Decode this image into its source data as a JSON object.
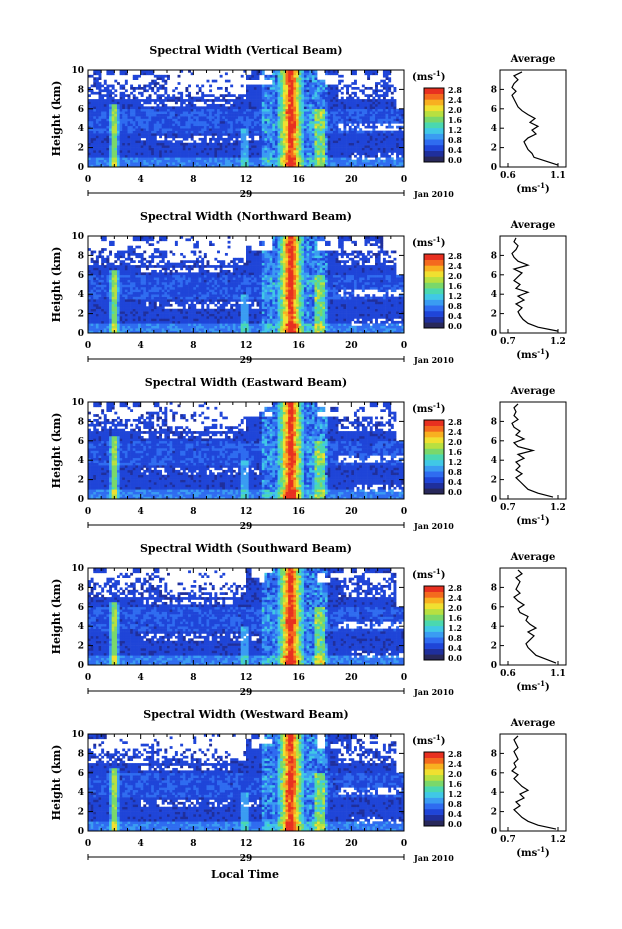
{
  "figure": {
    "xlabel": "Local Time",
    "date_label": "Jan 2010",
    "day_label": "29",
    "colorbar_unit": "(ms",
    "colorbar_unit_exp": "-1",
    "colorbar_unit_close": ")",
    "colorbar_ticks": [
      "0.0",
      "0.4",
      "0.8",
      "1.2",
      "1.6",
      "2.0",
      "2.4",
      "2.8"
    ],
    "average_title": "Average",
    "average_xunit": "(ms",
    "average_xunit_exp": "-1",
    "average_xunit_close": ")"
  },
  "chart_data": [
    {
      "type": "heatmap",
      "title": "Spectral Width (Vertical Beam)",
      "ylabel": "Height (km)",
      "x_ticks": [
        "0",
        "4",
        "8",
        "12",
        "16",
        "20",
        "0"
      ],
      "y_ticks": [
        "0",
        "2",
        "4",
        "6",
        "8",
        "10"
      ],
      "xlim": [
        0,
        24
      ],
      "ylim": [
        0,
        10
      ],
      "colorbar_range": [
        0.0,
        2.8
      ],
      "colorbar_ticks": [
        0.0,
        0.4,
        0.8,
        1.2,
        1.6,
        2.0,
        2.4,
        2.8
      ],
      "average_profile": {
        "xlim": [
          0.6,
          1.1
        ],
        "x_ticks": [
          "0.6",
          "1.1"
        ],
        "y_ticks": [
          "0",
          "2",
          "4",
          "6",
          "8"
        ],
        "height_km": [
          0.2,
          0.6,
          1.0,
          1.4,
          1.8,
          2.2,
          2.6,
          3.0,
          3.4,
          3.8,
          4.2,
          4.6,
          5.0,
          5.4,
          5.8,
          6.2,
          6.6,
          7.0,
          7.4,
          7.8,
          8.2,
          8.6,
          9.0,
          9.4,
          9.8
        ],
        "value": [
          1.1,
          0.98,
          0.86,
          0.84,
          0.8,
          0.78,
          0.76,
          0.8,
          0.88,
          0.84,
          0.9,
          0.82,
          0.87,
          0.8,
          0.74,
          0.7,
          0.68,
          0.66,
          0.64,
          0.68,
          0.64,
          0.66,
          0.7,
          0.66,
          0.74
        ]
      }
    },
    {
      "type": "heatmap",
      "title": "Spectral Width (Northward Beam)",
      "ylabel": "Height (km)",
      "x_ticks": [
        "0",
        "4",
        "8",
        "12",
        "16",
        "20",
        "0"
      ],
      "y_ticks": [
        "0",
        "2",
        "4",
        "6",
        "8",
        "10"
      ],
      "xlim": [
        0,
        24
      ],
      "ylim": [
        0,
        10
      ],
      "colorbar_range": [
        0.0,
        2.8
      ],
      "colorbar_ticks": [
        0.0,
        0.4,
        0.8,
        1.2,
        1.6,
        2.0,
        2.4,
        2.8
      ],
      "average_profile": {
        "xlim": [
          0.7,
          1.2
        ],
        "x_ticks": [
          "0.7",
          "1.2"
        ],
        "y_ticks": [
          "0",
          "2",
          "4",
          "6",
          "8"
        ],
        "height_km": [
          0.2,
          0.6,
          1.0,
          1.4,
          1.8,
          2.2,
          2.6,
          3.0,
          3.4,
          3.8,
          4.2,
          4.6,
          5.0,
          5.4,
          5.8,
          6.2,
          6.6,
          7.0,
          7.4,
          7.8,
          8.2,
          8.6,
          9.0,
          9.4,
          9.8
        ],
        "value": [
          1.2,
          1.0,
          0.9,
          0.85,
          0.82,
          0.8,
          0.84,
          0.78,
          0.86,
          0.8,
          0.9,
          0.78,
          0.82,
          0.76,
          0.8,
          0.84,
          0.76,
          0.9,
          0.8,
          0.76,
          0.74,
          0.78,
          0.8,
          0.76,
          0.78
        ]
      }
    },
    {
      "type": "heatmap",
      "title": "Spectral Width (Eastward Beam)",
      "ylabel": "Height (km)",
      "x_ticks": [
        "0",
        "4",
        "8",
        "12",
        "16",
        "20",
        "0"
      ],
      "y_ticks": [
        "0",
        "2",
        "4",
        "6",
        "8",
        "10"
      ],
      "xlim": [
        0,
        24
      ],
      "ylim": [
        0,
        10
      ],
      "colorbar_range": [
        0.0,
        2.8
      ],
      "colorbar_ticks": [
        0.0,
        0.4,
        0.8,
        1.2,
        1.6,
        2.0,
        2.4,
        2.8
      ],
      "average_profile": {
        "xlim": [
          0.7,
          1.2
        ],
        "x_ticks": [
          "0.7",
          "1.2"
        ],
        "y_ticks": [
          "0",
          "2",
          "4",
          "6",
          "8"
        ],
        "height_km": [
          0.2,
          0.6,
          1.0,
          1.4,
          1.8,
          2.2,
          2.6,
          3.0,
          3.4,
          3.8,
          4.2,
          4.6,
          5.0,
          5.4,
          5.8,
          6.2,
          6.6,
          7.0,
          7.4,
          7.8,
          8.2,
          8.6,
          9.0,
          9.4,
          9.8
        ],
        "value": [
          1.15,
          1.0,
          0.9,
          0.86,
          0.82,
          0.78,
          0.84,
          0.78,
          0.82,
          0.78,
          0.86,
          0.8,
          0.95,
          0.8,
          0.76,
          0.86,
          0.78,
          0.82,
          0.76,
          0.74,
          0.8,
          0.76,
          0.78,
          0.76,
          0.8
        ]
      }
    },
    {
      "type": "heatmap",
      "title": "Spectral Width (Southward Beam)",
      "ylabel": "Height (km)",
      "x_ticks": [
        "0",
        "4",
        "8",
        "12",
        "16",
        "20",
        "0"
      ],
      "y_ticks": [
        "0",
        "2",
        "4",
        "6",
        "8",
        "10"
      ],
      "xlim": [
        0,
        24
      ],
      "ylim": [
        0,
        10
      ],
      "colorbar_range": [
        0.0,
        2.8
      ],
      "colorbar_ticks": [
        0.0,
        0.4,
        0.8,
        1.2,
        1.6,
        2.0,
        2.4,
        2.8
      ],
      "average_profile": {
        "xlim": [
          0.6,
          1.1
        ],
        "x_ticks": [
          "0.6",
          "1.1"
        ],
        "y_ticks": [
          "0",
          "2",
          "4",
          "6",
          "8"
        ],
        "height_km": [
          0.2,
          0.6,
          1.0,
          1.4,
          1.8,
          2.2,
          2.6,
          3.0,
          3.4,
          3.8,
          4.2,
          4.6,
          5.0,
          5.4,
          5.8,
          6.2,
          6.6,
          7.0,
          7.4,
          7.8,
          8.2,
          8.6,
          9.0,
          9.4,
          9.8
        ],
        "value": [
          1.08,
          0.98,
          0.88,
          0.84,
          0.8,
          0.78,
          0.82,
          0.86,
          0.8,
          0.88,
          0.82,
          0.78,
          0.8,
          0.72,
          0.7,
          0.76,
          0.7,
          0.66,
          0.72,
          0.68,
          0.7,
          0.72,
          0.68,
          0.74,
          0.7
        ]
      }
    },
    {
      "type": "heatmap",
      "title": "Spectral Width (Westward Beam)",
      "ylabel": "Height (km)",
      "x_ticks": [
        "0",
        "4",
        "8",
        "12",
        "16",
        "20",
        "0"
      ],
      "y_ticks": [
        "0",
        "2",
        "4",
        "6",
        "8",
        "10"
      ],
      "xlim": [
        0,
        24
      ],
      "ylim": [
        0,
        10
      ],
      "colorbar_range": [
        0.0,
        2.8
      ],
      "colorbar_ticks": [
        0.0,
        0.4,
        0.8,
        1.2,
        1.6,
        2.0,
        2.4,
        2.8
      ],
      "average_profile": {
        "xlim": [
          0.7,
          1.2
        ],
        "x_ticks": [
          "0.7",
          "1.2"
        ],
        "y_ticks": [
          "0",
          "2",
          "4",
          "6",
          "8"
        ],
        "height_km": [
          0.2,
          0.6,
          1.0,
          1.4,
          1.8,
          2.2,
          2.6,
          3.0,
          3.4,
          3.8,
          4.2,
          4.6,
          5.0,
          5.4,
          5.8,
          6.2,
          6.6,
          7.0,
          7.4,
          7.8,
          8.2,
          8.6,
          9.0,
          9.4,
          9.8
        ],
        "value": [
          1.18,
          1.0,
          0.9,
          0.84,
          0.8,
          0.76,
          0.82,
          0.78,
          0.86,
          0.82,
          0.9,
          0.84,
          0.8,
          0.76,
          0.8,
          0.74,
          0.78,
          0.76,
          0.8,
          0.78,
          0.76,
          0.8,
          0.78,
          0.76,
          0.8
        ]
      }
    }
  ],
  "colors": {
    "scale": [
      "#28285a",
      "#1f2f9c",
      "#1f45d8",
      "#2f6cf0",
      "#3a9cf2",
      "#40c8e6",
      "#4ad8b0",
      "#7ad86a",
      "#b8e040",
      "#f0e030",
      "#f8b020",
      "#f46a1e",
      "#e83020"
    ]
  }
}
